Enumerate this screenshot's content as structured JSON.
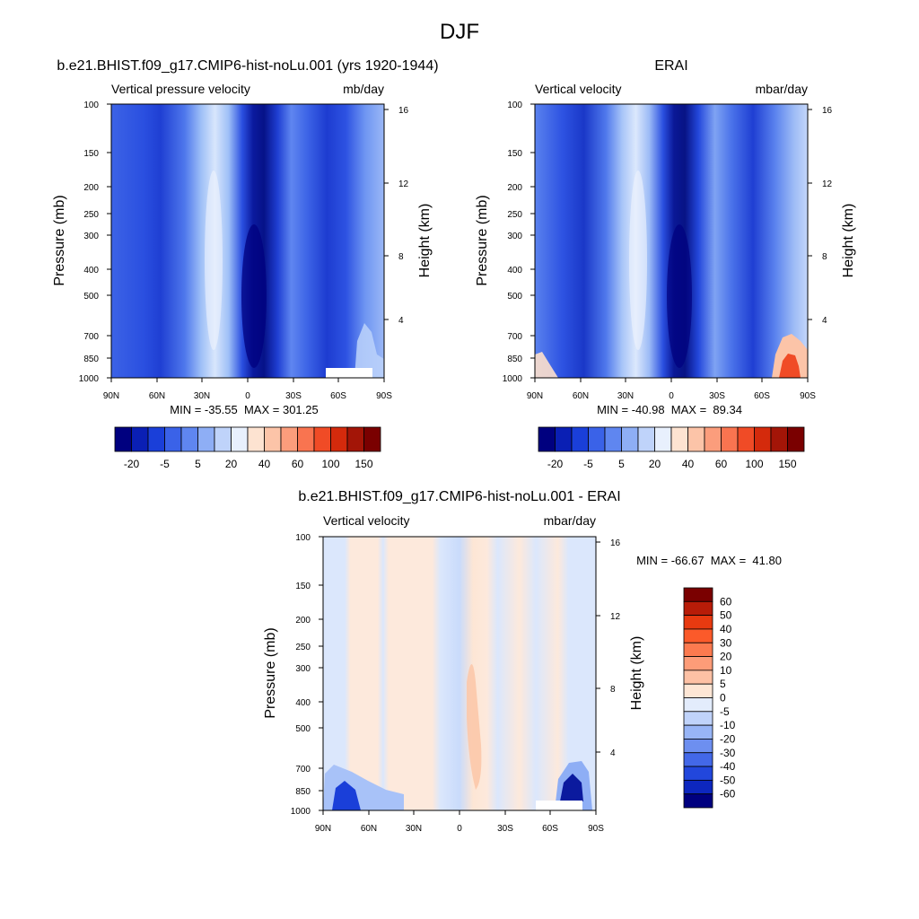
{
  "figure": {
    "title": "DJF"
  },
  "chart_data": [
    {
      "type": "heatmap",
      "title": "b.e21.BHIST.f09_g17.CMIP6-hist-noLu.001 (yrs 1920-1944)",
      "subtitle_left": "Vertical pressure velocity",
      "subtitle_right": "mb/day",
      "ylabel": "Pressure (mb)",
      "ylabel_right": "Height (km)",
      "x_ticks": [
        "90N",
        "60N",
        "30N",
        "0",
        "30S",
        "60S",
        "90S"
      ],
      "y_ticks": [
        "100",
        "150",
        "200",
        "250",
        "300",
        "400",
        "500",
        "700",
        "850",
        "1000"
      ],
      "y_right_ticks": [
        "16",
        "12",
        "8",
        "4"
      ],
      "stats": "MIN = -35.55  MAX = 301.25",
      "colorbar_labels": [
        "-20",
        "-5",
        "5",
        "20",
        "40",
        "60",
        "100",
        "150"
      ],
      "colorbar_colors": [
        "#00007f",
        "#0a1fb4",
        "#1a3fd9",
        "#3a62e8",
        "#5f86f0",
        "#8eaef5",
        "#bfd3fa",
        "#e8f0fd",
        "#fde3d1",
        "#fcc4a8",
        "#fb9d7c",
        "#f97450",
        "#f04b26",
        "#d42a0c",
        "#a31507",
        "#7a0000"
      ],
      "grid": false
    },
    {
      "type": "heatmap",
      "title": "ERAI",
      "subtitle_left": "Vertical velocity",
      "subtitle_right": "mbar/day",
      "ylabel": "Pressure (mb)",
      "ylabel_right": "Height (km)",
      "x_ticks": [
        "90N",
        "60N",
        "30N",
        "0",
        "30S",
        "60S",
        "90S"
      ],
      "y_ticks": [
        "100",
        "150",
        "200",
        "250",
        "300",
        "400",
        "500",
        "700",
        "850",
        "1000"
      ],
      "y_right_ticks": [
        "16",
        "12",
        "8",
        "4"
      ],
      "stats": "MIN = -40.98  MAX =  89.34",
      "colorbar_labels": [
        "-20",
        "-5",
        "5",
        "20",
        "40",
        "60",
        "100",
        "150"
      ],
      "colorbar_colors": [
        "#00007f",
        "#0a1fb4",
        "#1a3fd9",
        "#3a62e8",
        "#5f86f0",
        "#8eaef5",
        "#bfd3fa",
        "#e8f0fd",
        "#fde3d1",
        "#fcc4a8",
        "#fb9d7c",
        "#f97450",
        "#f04b26",
        "#d42a0c",
        "#a31507",
        "#7a0000"
      ],
      "grid": false
    },
    {
      "type": "heatmap",
      "title": "b.e21.BHIST.f09_g17.CMIP6-hist-noLu.001 - ERAI",
      "subtitle_left": "Vertical velocity",
      "subtitle_right": "mbar/day",
      "ylabel": "Pressure (mb)",
      "ylabel_right": "Height (km)",
      "x_ticks": [
        "90N",
        "60N",
        "30N",
        "0",
        "30S",
        "60S",
        "90S"
      ],
      "y_ticks": [
        "100",
        "150",
        "200",
        "250",
        "300",
        "400",
        "500",
        "700",
        "850",
        "1000"
      ],
      "y_right_ticks": [
        "16",
        "12",
        "8",
        "4"
      ],
      "stats": "MIN = -66.67  MAX =  41.80",
      "colorbar_labels": [
        "60",
        "50",
        "40",
        "30",
        "20",
        "10",
        "5",
        "0",
        "-5",
        "-10",
        "-20",
        "-30",
        "-40",
        "-50",
        "-60"
      ],
      "colorbar_colors": [
        "#7a0000",
        "#b81c08",
        "#e83a10",
        "#fb5a2a",
        "#fc7a4f",
        "#fd9c78",
        "#fdc1a5",
        "#fde6d5",
        "#e3ecfc",
        "#c0d3fa",
        "#98b5f6",
        "#6d8ff0",
        "#4368e8",
        "#2247dc",
        "#0d27bf",
        "#00007f"
      ],
      "grid": false
    }
  ]
}
